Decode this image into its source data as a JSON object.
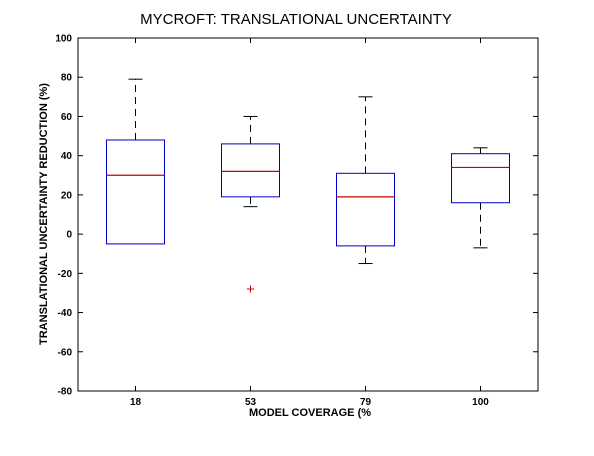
{
  "chart_data": {
    "type": "box",
    "title": "MYCROFT: TRANSLATIONAL UNCERTAINTY",
    "xlabel": "MODEL COVERAGE (%",
    "ylabel": "TRANSLATIONAL UNCERTAINTY REDUCTION (%)",
    "ylim": [
      -80,
      100
    ],
    "yticks": [
      100,
      80,
      60,
      40,
      20,
      0,
      -20,
      -40,
      -60,
      -80
    ],
    "categories": [
      "18",
      "53",
      "79",
      "100"
    ],
    "boxes": [
      {
        "category": "18",
        "whisker_low": -5,
        "q1": -5,
        "median": 30,
        "q3": 48,
        "whisker_high": 79,
        "outliers": []
      },
      {
        "category": "53",
        "whisker_low": 14,
        "q1": 19,
        "median": 32,
        "q3": 46,
        "whisker_high": 60,
        "outliers": [
          -28
        ]
      },
      {
        "category": "79",
        "whisker_low": -15,
        "q1": -6,
        "median": 19,
        "q3": 31,
        "whisker_high": 70,
        "outliers": []
      },
      {
        "category": "100",
        "whisker_low": -7,
        "q1": 16,
        "median": 34,
        "q3": 41,
        "whisker_high": 44,
        "outliers": []
      }
    ],
    "colors": {
      "box": "#0000cc",
      "median": "#cc0000",
      "whisker": "#000000",
      "outlier": "#cc0000"
    },
    "grid": false,
    "legend": "none"
  }
}
